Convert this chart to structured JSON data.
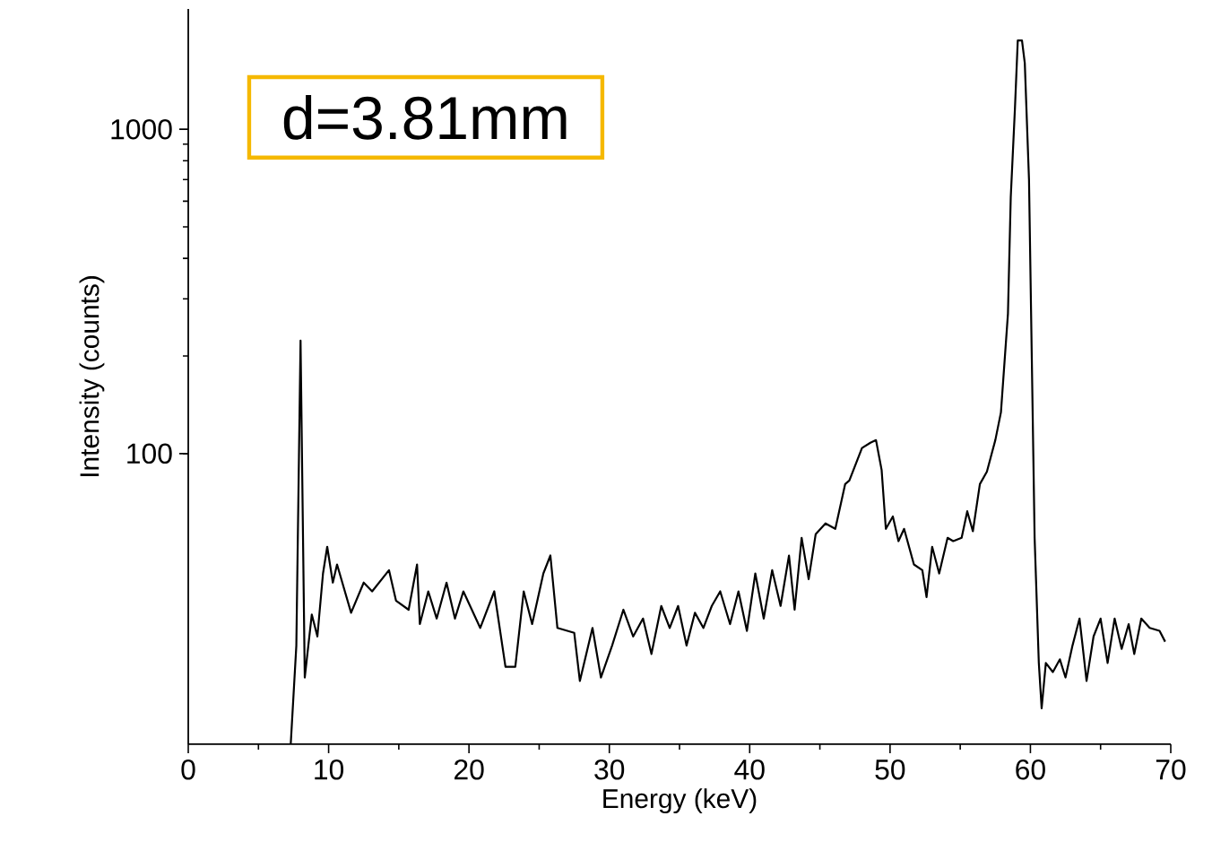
{
  "chart_data": {
    "type": "line",
    "xlabel": "Energy (keV)",
    "ylabel": "Intensity (counts)",
    "log": "y",
    "grid": false,
    "marker": "none",
    "line_style": "solid",
    "xlim": [
      0,
      70
    ],
    "ylim": [
      12.7,
      2350
    ],
    "xticks": [
      0,
      10,
      20,
      30,
      40,
      50,
      60,
      70
    ],
    "yticks": [
      100,
      1000
    ],
    "annotations": [
      "d=3.81mm"
    ],
    "series": [
      {
        "color": "#000000",
        "x": [
          7.3,
          7.7,
          8.0,
          8.3,
          8.8,
          9.2,
          9.6,
          9.9,
          10.3,
          10.6,
          11.6,
          12.5,
          13.1,
          14.3,
          14.8,
          15.7,
          16.3,
          16.5,
          17.1,
          17.7,
          18.4,
          19.0,
          19.6,
          20.8,
          21.8,
          22.6,
          23.3,
          23.9,
          24.5,
          25.3,
          25.8,
          26.3,
          27.5,
          27.9,
          28.8,
          29.4,
          30.2,
          31.0,
          31.7,
          32.4,
          33.0,
          33.7,
          34.3,
          34.9,
          35.5,
          36.1,
          36.7,
          37.3,
          37.9,
          38.6,
          39.2,
          39.8,
          40.4,
          41.0,
          41.6,
          42.2,
          42.8,
          43.2,
          43.7,
          44.2,
          44.7,
          45.4,
          46.1,
          46.8,
          47.1,
          48.0,
          48.6,
          49.0,
          49.4,
          49.7,
          50.2,
          50.6,
          51.0,
          51.7,
          52.3,
          52.6,
          53.0,
          53.5,
          54.1,
          54.5,
          55.1,
          55.5,
          55.9,
          56.4,
          56.9,
          57.5,
          57.9,
          58.4,
          58.6,
          58.9,
          59.1,
          59.4,
          59.6,
          59.9,
          60.1,
          60.3,
          60.6,
          60.8,
          61.1,
          61.6,
          62.1,
          62.5,
          63.0,
          63.5,
          64.0,
          64.5,
          65.0,
          65.5,
          66.0,
          66.5,
          67.0,
          67.4,
          67.9,
          68.5,
          69.2,
          69.6
        ],
        "values": [
          12.7,
          25.6,
          223,
          20.4,
          31.9,
          27.3,
          42.7,
          51.6,
          40,
          45.5,
          32.3,
          40,
          37.6,
          43.7,
          35.2,
          33,
          45.5,
          29.8,
          37.6,
          31,
          40,
          31,
          37.6,
          29,
          37.6,
          22,
          22,
          37.6,
          29.8,
          42.7,
          48.5,
          29,
          28,
          19.9,
          29,
          20.4,
          25.6,
          33,
          27.3,
          31,
          24.1,
          33.9,
          29,
          33.9,
          25.6,
          32.3,
          29,
          33.9,
          37.6,
          29.8,
          37.6,
          28.4,
          42.7,
          31,
          43.7,
          33.9,
          48.5,
          33,
          55,
          41,
          56.4,
          60.9,
          58.6,
          80.5,
          82.6,
          104,
          108,
          110,
          89,
          58.6,
          64,
          53.7,
          58.6,
          45.5,
          43.7,
          36.1,
          51.6,
          42.7,
          55,
          53.7,
          55,
          66.4,
          57.6,
          80.5,
          88,
          110,
          134,
          270,
          617,
          1165,
          1880,
          1880,
          1600,
          700,
          196,
          55,
          22.6,
          16.4,
          22.6,
          21.2,
          23.2,
          20.4,
          25.6,
          31,
          19.9,
          27.3,
          31,
          22.6,
          31,
          25,
          29.8,
          24.1,
          31,
          29,
          28.4,
          26.3
        ]
      }
    ]
  }
}
